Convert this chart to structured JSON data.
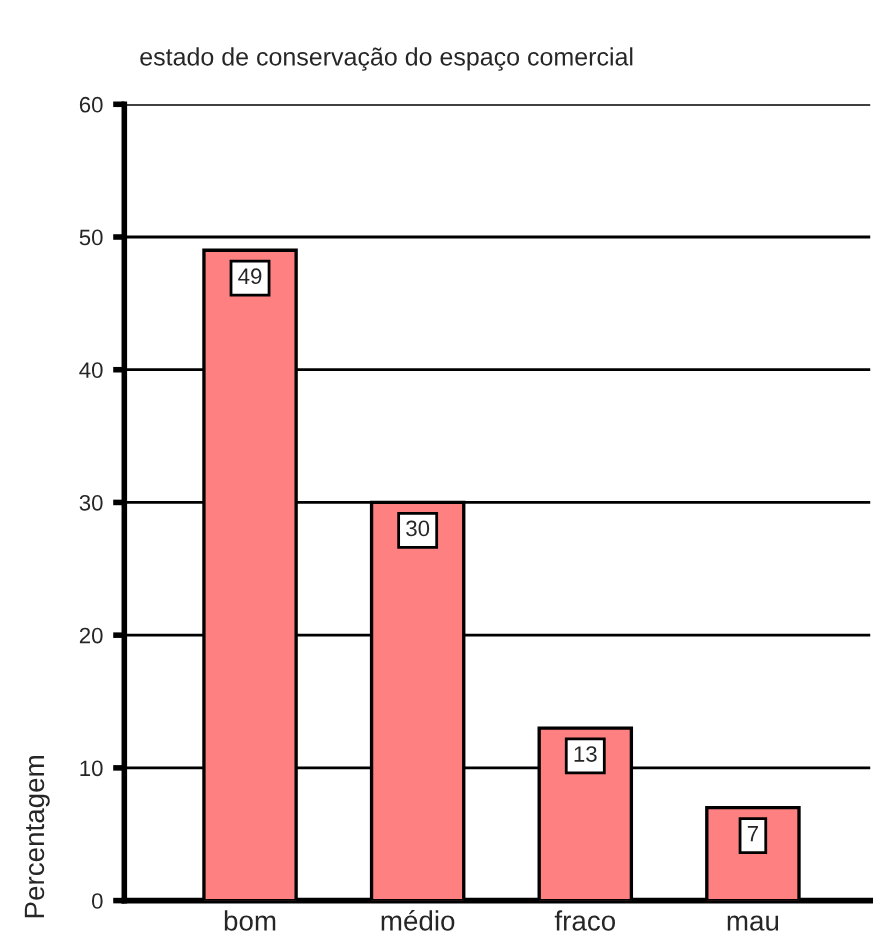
{
  "chart_data": {
    "type": "bar",
    "title": "estado de conservação do espaço comercial",
    "ylabel": "Percentagem",
    "categories": [
      "bom",
      "médio",
      "fraco",
      "mau"
    ],
    "values": [
      49,
      30,
      13,
      7
    ],
    "color": "#ff8080",
    "ylim": [
      0,
      60
    ],
    "yticks": [
      0,
      10,
      20,
      30,
      40,
      50,
      60
    ],
    "grid": "y",
    "data_labels": true
  }
}
